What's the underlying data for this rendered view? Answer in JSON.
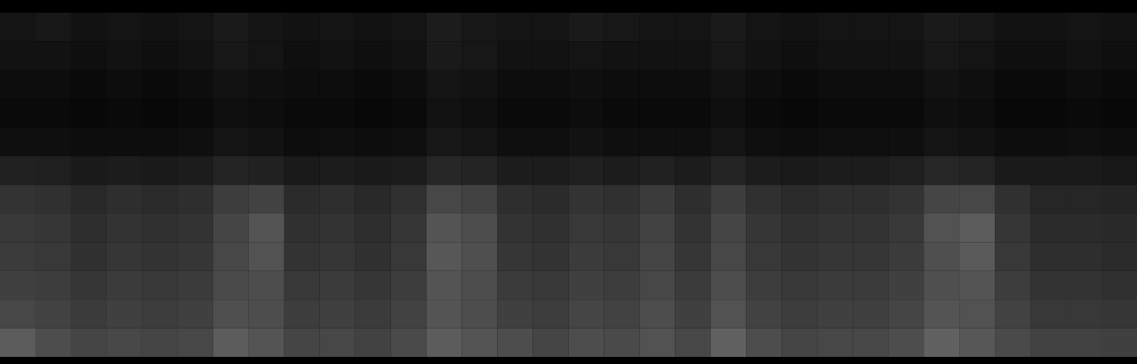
{
  "chart_data": {
    "type": "heatmap",
    "tick_labels": false,
    "clim": [
      0,
      1
    ],
    "cells": [
      [
        0.08,
        0.09,
        0.07,
        0.08,
        0.07,
        0.08,
        0.1,
        0.08,
        0.07,
        0.08,
        0.07,
        0.08,
        0.11,
        0.09,
        0.08,
        0.08,
        0.1,
        0.09,
        0.08,
        0.08,
        0.1,
        0.08,
        0.07,
        0.08,
        0.08,
        0.08,
        0.1,
        0.09,
        0.07,
        0.07,
        0.08,
        0.07
      ],
      [
        0.07,
        0.07,
        0.06,
        0.07,
        0.06,
        0.07,
        0.09,
        0.08,
        0.06,
        0.07,
        0.06,
        0.07,
        0.1,
        0.09,
        0.07,
        0.07,
        0.08,
        0.07,
        0.07,
        0.07,
        0.09,
        0.07,
        0.06,
        0.07,
        0.07,
        0.07,
        0.09,
        0.08,
        0.06,
        0.06,
        0.07,
        0.06
      ],
      [
        0.05,
        0.05,
        0.04,
        0.05,
        0.04,
        0.05,
        0.07,
        0.06,
        0.05,
        0.05,
        0.04,
        0.05,
        0.08,
        0.07,
        0.05,
        0.05,
        0.06,
        0.05,
        0.05,
        0.05,
        0.07,
        0.05,
        0.04,
        0.05,
        0.05,
        0.05,
        0.07,
        0.06,
        0.04,
        0.04,
        0.05,
        0.04
      ],
      [
        0.04,
        0.04,
        0.03,
        0.04,
        0.03,
        0.04,
        0.06,
        0.05,
        0.04,
        0.04,
        0.03,
        0.04,
        0.07,
        0.06,
        0.04,
        0.04,
        0.05,
        0.04,
        0.04,
        0.04,
        0.06,
        0.04,
        0.03,
        0.04,
        0.04,
        0.04,
        0.06,
        0.05,
        0.03,
        0.03,
        0.04,
        0.03
      ],
      [
        0.06,
        0.06,
        0.05,
        0.05,
        0.05,
        0.06,
        0.08,
        0.07,
        0.05,
        0.06,
        0.05,
        0.06,
        0.09,
        0.08,
        0.06,
        0.06,
        0.07,
        0.06,
        0.06,
        0.06,
        0.08,
        0.06,
        0.05,
        0.06,
        0.06,
        0.06,
        0.08,
        0.07,
        0.05,
        0.05,
        0.06,
        0.05
      ],
      [
        0.13,
        0.12,
        0.1,
        0.11,
        0.1,
        0.11,
        0.14,
        0.13,
        0.1,
        0.11,
        0.1,
        0.11,
        0.15,
        0.14,
        0.11,
        0.11,
        0.12,
        0.11,
        0.13,
        0.11,
        0.14,
        0.11,
        0.1,
        0.11,
        0.11,
        0.12,
        0.15,
        0.14,
        0.1,
        0.1,
        0.1,
        0.09
      ],
      [
        0.2,
        0.19,
        0.16,
        0.18,
        0.17,
        0.18,
        0.24,
        0.26,
        0.17,
        0.18,
        0.16,
        0.19,
        0.28,
        0.26,
        0.18,
        0.17,
        0.2,
        0.19,
        0.23,
        0.18,
        0.24,
        0.19,
        0.17,
        0.18,
        0.18,
        0.2,
        0.27,
        0.28,
        0.19,
        0.15,
        0.15,
        0.14
      ],
      [
        0.22,
        0.21,
        0.18,
        0.2,
        0.19,
        0.2,
        0.27,
        0.33,
        0.19,
        0.2,
        0.18,
        0.21,
        0.33,
        0.3,
        0.2,
        0.19,
        0.22,
        0.21,
        0.26,
        0.2,
        0.27,
        0.21,
        0.19,
        0.2,
        0.2,
        0.22,
        0.32,
        0.36,
        0.21,
        0.17,
        0.17,
        0.16
      ],
      [
        0.23,
        0.22,
        0.19,
        0.21,
        0.2,
        0.21,
        0.28,
        0.32,
        0.2,
        0.21,
        0.19,
        0.22,
        0.34,
        0.31,
        0.21,
        0.2,
        0.23,
        0.22,
        0.27,
        0.21,
        0.28,
        0.22,
        0.2,
        0.21,
        0.21,
        0.23,
        0.31,
        0.35,
        0.22,
        0.18,
        0.18,
        0.17
      ],
      [
        0.25,
        0.24,
        0.21,
        0.23,
        0.22,
        0.23,
        0.29,
        0.3,
        0.22,
        0.23,
        0.21,
        0.24,
        0.33,
        0.3,
        0.23,
        0.22,
        0.25,
        0.24,
        0.28,
        0.23,
        0.3,
        0.24,
        0.22,
        0.23,
        0.23,
        0.25,
        0.31,
        0.33,
        0.24,
        0.2,
        0.2,
        0.19
      ],
      [
        0.28,
        0.26,
        0.23,
        0.25,
        0.24,
        0.25,
        0.31,
        0.3,
        0.24,
        0.25,
        0.23,
        0.26,
        0.33,
        0.3,
        0.25,
        0.24,
        0.27,
        0.26,
        0.3,
        0.25,
        0.32,
        0.26,
        0.24,
        0.25,
        0.25,
        0.27,
        0.33,
        0.32,
        0.26,
        0.22,
        0.22,
        0.21
      ],
      [
        0.36,
        0.3,
        0.27,
        0.28,
        0.27,
        0.28,
        0.36,
        0.33,
        0.27,
        0.28,
        0.26,
        0.29,
        0.36,
        0.33,
        0.3,
        0.27,
        0.3,
        0.29,
        0.32,
        0.28,
        0.38,
        0.3,
        0.27,
        0.28,
        0.28,
        0.3,
        0.38,
        0.34,
        0.29,
        0.26,
        0.26,
        0.25
      ]
    ]
  }
}
